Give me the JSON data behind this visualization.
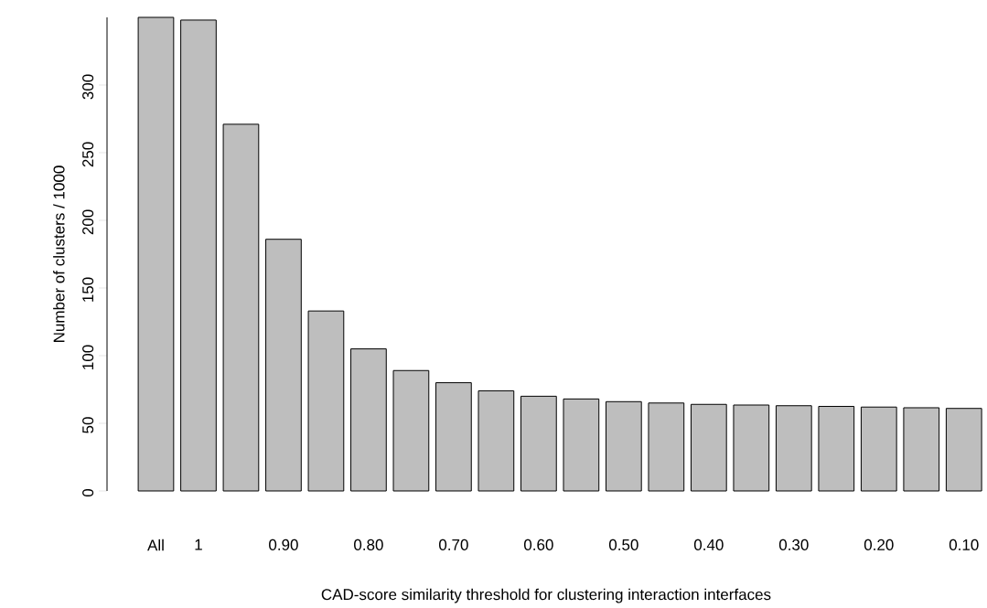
{
  "chart_data": {
    "type": "bar",
    "xlabel": "CAD-score similarity threshold for clustering interaction interfaces",
    "ylabel": "Number of clusters / 1000",
    "categories": [
      "All",
      "1",
      null,
      "0.90",
      null,
      "0.80",
      null,
      "0.70",
      null,
      "0.60",
      null,
      "0.50",
      null,
      "0.40",
      null,
      "0.30",
      null,
      "0.20",
      null,
      "0.10"
    ],
    "values": [
      350,
      348,
      271,
      186,
      133,
      105,
      89,
      80,
      74,
      70,
      68,
      66,
      65,
      64,
      63.5,
      63,
      62.5,
      62,
      61.5,
      61
    ],
    "color": "#bebebe",
    "ylim": [
      0,
      350
    ],
    "yticks": [
      0,
      50,
      100,
      150,
      200,
      250,
      300
    ]
  }
}
